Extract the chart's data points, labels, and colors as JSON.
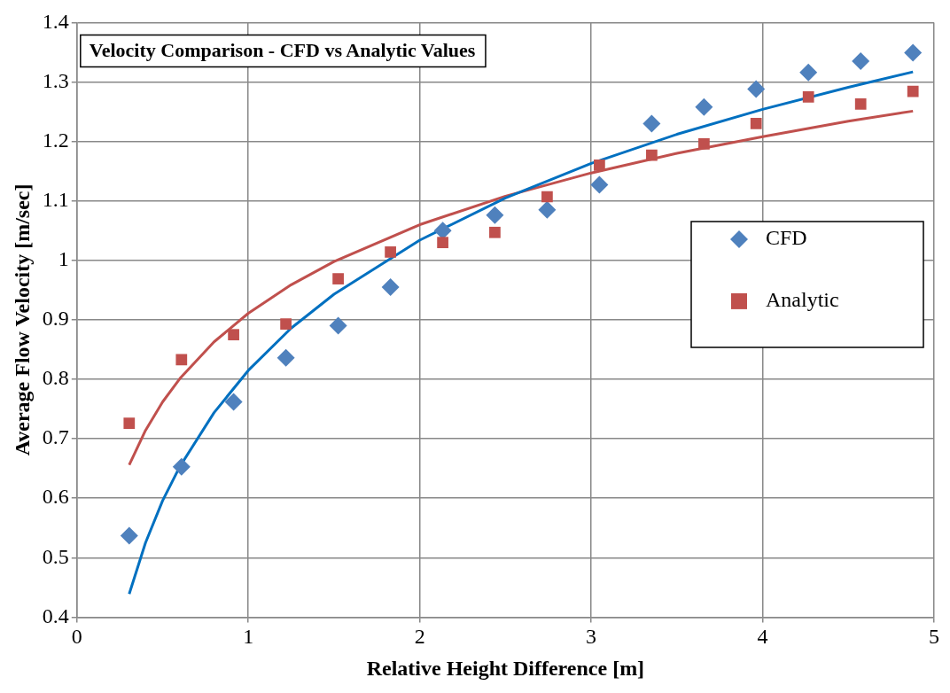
{
  "chart_data": {
    "type": "scatter",
    "title": "Velocity Comparison - CFD vs Analytic Values",
    "xlabel": "Relative Height Difference [m]",
    "ylabel": "Average Flow Velocity [m/sec]",
    "xlim": [
      0,
      5
    ],
    "xticks": [
      0,
      1,
      2,
      3,
      4,
      5
    ],
    "ylim": [
      0.4,
      1.4
    ],
    "yticks": [
      0.4,
      0.5,
      0.6,
      0.7,
      0.8,
      0.9,
      1,
      1.1,
      1.2,
      1.3,
      1.4
    ],
    "grid": true,
    "legend": "right",
    "series": [
      {
        "name": "CFD",
        "marker": "diamond",
        "color": "#4f81bd",
        "x": [
          0.305,
          0.61,
          0.914,
          1.219,
          1.524,
          1.829,
          2.134,
          2.438,
          2.743,
          3.048,
          3.353,
          3.658,
          3.962,
          4.267,
          4.572,
          4.877
        ],
        "values": [
          0.537,
          0.653,
          0.762,
          0.836,
          0.89,
          0.955,
          1.05,
          1.076,
          1.085,
          1.127,
          1.23,
          1.258,
          1.288,
          1.316,
          1.335,
          1.349
        ]
      },
      {
        "name": "Analytic",
        "marker": "square",
        "color": "#c0504d",
        "x": [
          0.305,
          0.61,
          0.914,
          1.219,
          1.524,
          1.829,
          2.134,
          2.438,
          2.743,
          3.048,
          3.353,
          3.658,
          3.962,
          4.267,
          4.572,
          4.877
        ],
        "values": [
          0.726,
          0.833,
          0.875,
          0.893,
          0.969,
          1.014,
          1.03,
          1.047,
          1.107,
          1.16,
          1.177,
          1.196,
          1.23,
          1.275,
          1.263,
          1.284
        ]
      },
      {
        "type": "line",
        "marker": "none",
        "line_style": "solid",
        "color": "#0070c0",
        "x": [
          0.305,
          0.4,
          0.5,
          0.6,
          0.8,
          1,
          1.25,
          1.5,
          2,
          2.5,
          3,
          3.5,
          4,
          4.5,
          4.877
        ],
        "values": [
          0.439,
          0.525,
          0.596,
          0.653,
          0.744,
          0.815,
          0.886,
          0.943,
          1.034,
          1.105,
          1.163,
          1.212,
          1.254,
          1.291,
          1.317
        ]
      },
      {
        "type": "line",
        "marker": "none",
        "line_style": "solid",
        "color": "#c0504d",
        "x": [
          0.305,
          0.4,
          0.5,
          0.6,
          0.8,
          1,
          1.25,
          1.5,
          2,
          2.5,
          3,
          3.5,
          4,
          4.5,
          4.877
        ],
        "values": [
          0.656,
          0.714,
          0.762,
          0.801,
          0.863,
          0.911,
          0.959,
          0.998,
          1.06,
          1.108,
          1.147,
          1.18,
          1.208,
          1.234,
          1.251
        ]
      }
    ]
  }
}
